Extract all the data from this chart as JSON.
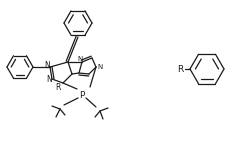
{
  "bg_color": "#ffffff",
  "line_color": "#1a1a1a",
  "lw": 0.9,
  "figsize": [
    2.39,
    1.41
  ],
  "dpi": 100,
  "xlim": [
    0,
    239
  ],
  "ylim": [
    0,
    141
  ]
}
